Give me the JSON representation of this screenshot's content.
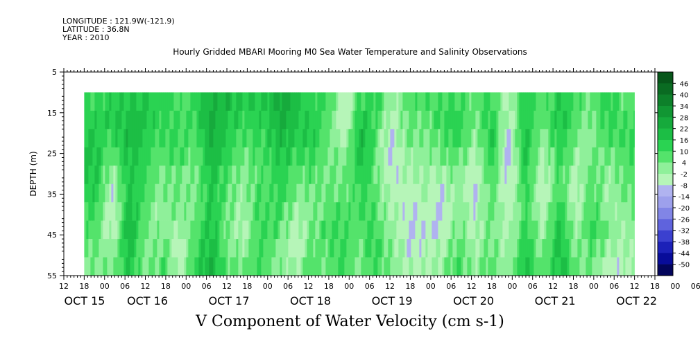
{
  "header": {
    "longitude": "LONGITUDE : 121.9W(-121.9)",
    "latitude": "LATITUDE : 36.8N",
    "year": "YEAR : 2010"
  },
  "chart_data": {
    "type": "heatmap",
    "title": "Hourly Gridded MBARI Mooring M0 Sea Water Temperature and Salinity Observations",
    "bottom_title": "V Component of Water Velocity (cm s-1)",
    "ylabel": "DEPTH (m)",
    "y_ticks": [
      5,
      15,
      25,
      35,
      45,
      55
    ],
    "ylim": [
      5,
      55
    ],
    "y_data_range": [
      10,
      55
    ],
    "x_hour_ticks": [
      "12",
      "18",
      "00",
      "06",
      "12",
      "18",
      "00",
      "06",
      "12",
      "18",
      "00",
      "06",
      "12",
      "18",
      "00",
      "06",
      "12",
      "18",
      "00",
      "06",
      "12",
      "18",
      "00",
      "06",
      "12",
      "18",
      "00",
      "06",
      "12",
      "18",
      "00",
      "06"
    ],
    "x_day_labels": [
      "OCT 15",
      "OCT 16",
      "OCT 17",
      "OCT 18",
      "OCT 19",
      "OCT 20",
      "OCT 21",
      "OCT 22"
    ],
    "x_start": "2010-10-15T12:00",
    "data_start": "2010-10-15T18:00",
    "data_end": "2010-10-22T12:00",
    "colorbar_levels": [
      "46",
      "40",
      "34",
      "28",
      "22",
      "16",
      "10",
      "4",
      "-2",
      "-8",
      "-14",
      "-20",
      "-26",
      "-32",
      "-38",
      "-44",
      "-50"
    ],
    "colorbar_colors": [
      "#07561a",
      "#0a6b22",
      "#0d802a",
      "#119633",
      "#16aa3c",
      "#1cbe45",
      "#2ad352",
      "#54e36b",
      "#8ff09a",
      "#b6f5b8",
      "#b0b3f0",
      "#9da0ec",
      "#8185e6",
      "#5f63dd",
      "#3b40cf",
      "#1c21b8",
      "#080c9a",
      "#03055c"
    ],
    "columns": [
      {
        "c": 0.02,
        "v": [
          10,
          12,
          14,
          16,
          14,
          12,
          8,
          6,
          4,
          2
        ]
      },
      {
        "c": 0.05,
        "v": [
          16,
          18,
          14,
          6,
          0,
          -4,
          -6,
          -4,
          2,
          6
        ]
      },
      {
        "c": 0.08,
        "v": [
          14,
          16,
          18,
          16,
          14,
          16,
          18,
          20,
          16,
          14
        ]
      },
      {
        "c": 0.11,
        "v": [
          18,
          20,
          16,
          14,
          12,
          10,
          8,
          6,
          4,
          4
        ]
      },
      {
        "c": 0.14,
        "v": [
          12,
          10,
          8,
          6,
          2,
          0,
          -2,
          0,
          4,
          8
        ]
      },
      {
        "c": 0.17,
        "v": [
          8,
          10,
          12,
          10,
          6,
          4,
          2,
          -2,
          -6,
          -4
        ]
      },
      {
        "c": 0.2,
        "v": [
          14,
          12,
          8,
          6,
          4,
          4,
          6,
          8,
          10,
          12
        ]
      },
      {
        "c": 0.23,
        "v": [
          20,
          22,
          20,
          18,
          16,
          14,
          14,
          16,
          18,
          20
        ]
      },
      {
        "c": 0.26,
        "v": [
          22,
          20,
          18,
          14,
          10,
          8,
          6,
          4,
          6,
          8
        ]
      },
      {
        "c": 0.29,
        "v": [
          12,
          10,
          6,
          2,
          0,
          -2,
          -4,
          -6,
          -2,
          2
        ]
      },
      {
        "c": 0.32,
        "v": [
          16,
          14,
          12,
          10,
          8,
          10,
          12,
          14,
          12,
          10
        ]
      },
      {
        "c": 0.35,
        "v": [
          24,
          22,
          20,
          16,
          14,
          12,
          10,
          8,
          4,
          2
        ]
      },
      {
        "c": 0.38,
        "v": [
          20,
          18,
          14,
          10,
          6,
          2,
          -2,
          -6,
          -8,
          -4
        ]
      },
      {
        "c": 0.41,
        "v": [
          14,
          16,
          18,
          14,
          10,
          6,
          4,
          6,
          8,
          10
        ]
      },
      {
        "c": 0.44,
        "v": [
          8,
          6,
          4,
          2,
          0,
          2,
          4,
          6,
          4,
          2
        ]
      },
      {
        "c": 0.47,
        "v": [
          -6,
          -8,
          -4,
          2,
          6,
          8,
          10,
          12,
          14,
          12
        ]
      },
      {
        "c": 0.5,
        "v": [
          10,
          16,
          20,
          18,
          14,
          10,
          8,
          6,
          4,
          2
        ]
      },
      {
        "c": 0.53,
        "v": [
          12,
          8,
          4,
          2,
          4,
          6,
          8,
          10,
          12,
          10
        ]
      },
      {
        "c": 0.56,
        "v": [
          -2,
          -4,
          -6,
          -8,
          -6,
          -4,
          -2,
          0,
          2,
          4
        ]
      },
      {
        "c": 0.59,
        "v": [
          6,
          4,
          2,
          -2,
          -4,
          -8,
          -10,
          -12,
          -10,
          -6
        ]
      },
      {
        "c": 0.62,
        "v": [
          10,
          8,
          6,
          4,
          2,
          0,
          -2,
          -4,
          -2,
          0
        ]
      },
      {
        "c": 0.65,
        "v": [
          8,
          10,
          6,
          2,
          -4,
          -8,
          -12,
          -10,
          -6,
          -2
        ]
      },
      {
        "c": 0.68,
        "v": [
          12,
          14,
          12,
          8,
          4,
          2,
          4,
          6,
          8,
          10
        ]
      },
      {
        "c": 0.71,
        "v": [
          6,
          4,
          0,
          -4,
          -6,
          -8,
          -6,
          -4,
          -2,
          0
        ]
      },
      {
        "c": 0.74,
        "v": [
          10,
          12,
          14,
          12,
          8,
          6,
          4,
          2,
          4,
          6
        ]
      },
      {
        "c": 0.77,
        "v": [
          -2,
          -4,
          -8,
          -10,
          -8,
          -6,
          -4,
          -2,
          0,
          2
        ]
      },
      {
        "c": 0.8,
        "v": [
          12,
          14,
          16,
          14,
          12,
          10,
          8,
          10,
          12,
          14
        ]
      },
      {
        "c": 0.83,
        "v": [
          8,
          6,
          2,
          -2,
          -4,
          -6,
          -4,
          0,
          4,
          6
        ]
      },
      {
        "c": 0.86,
        "v": [
          14,
          16,
          14,
          10,
          8,
          10,
          14,
          18,
          20,
          18
        ]
      },
      {
        "c": 0.89,
        "v": [
          10,
          8,
          4,
          0,
          -4,
          -6,
          -4,
          -2,
          2,
          6
        ]
      },
      {
        "c": 0.92,
        "v": [
          6,
          4,
          2,
          4,
          8,
          10,
          12,
          14,
          10,
          6
        ]
      },
      {
        "c": 0.95,
        "v": [
          12,
          10,
          6,
          2,
          -2,
          -4,
          -2,
          0,
          -4,
          -8
        ]
      },
      {
        "c": 0.98,
        "v": [
          8,
          10,
          12,
          10,
          8,
          6,
          4,
          2,
          0,
          -2
        ]
      }
    ]
  }
}
